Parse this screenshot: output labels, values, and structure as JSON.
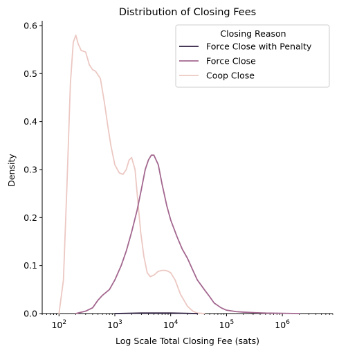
{
  "chart_data": {
    "type": "line",
    "title": "Distribution of Closing Fees",
    "xlabel": "Log Scale Total Closing Fee (sats)",
    "ylabel": "Density",
    "x_scale": "log",
    "xlim": [
      50,
      8000000
    ],
    "ylim": [
      0,
      0.61
    ],
    "x_ticks": [
      {
        "value": 100,
        "base": "10",
        "exp": "2"
      },
      {
        "value": 1000,
        "base": "10",
        "exp": "3"
      },
      {
        "value": 10000,
        "base": "10",
        "exp": "4"
      },
      {
        "value": 100000,
        "base": "10",
        "exp": "5"
      },
      {
        "value": 1000000,
        "base": "10",
        "exp": "6"
      }
    ],
    "y_ticks": [
      {
        "value": 0.0,
        "label": "0.0"
      },
      {
        "value": 0.1,
        "label": "0.1"
      },
      {
        "value": 0.2,
        "label": "0.2"
      },
      {
        "value": 0.3,
        "label": "0.3"
      },
      {
        "value": 0.4,
        "label": "0.4"
      },
      {
        "value": 0.5,
        "label": "0.5"
      },
      {
        "value": 0.6,
        "label": "0.6"
      }
    ],
    "grid": false,
    "legend": {
      "title": "Closing Reason",
      "placement": "top-right"
    },
    "series": [
      {
        "name": "Force Close with Penalty",
        "color": "#2d1e3e",
        "x": [
          1000,
          3000,
          10000,
          30000
        ],
        "y": [
          0.0,
          0.001,
          0.001,
          0.0
        ]
      },
      {
        "name": "Force Close",
        "color": "#a3678f",
        "x": [
          200,
          300,
          400,
          500,
          600,
          800,
          1000,
          1300,
          1600,
          2000,
          2500,
          3000,
          3500,
          4000,
          4500,
          5000,
          6000,
          7000,
          8500,
          10000,
          13000,
          16000,
          20000,
          25000,
          30000,
          40000,
          50000,
          60000,
          80000,
          100000,
          150000,
          200000,
          300000,
          500000,
          1000000,
          2000000
        ],
        "y": [
          0.0,
          0.005,
          0.012,
          0.028,
          0.038,
          0.05,
          0.07,
          0.1,
          0.13,
          0.17,
          0.215,
          0.26,
          0.3,
          0.32,
          0.33,
          0.33,
          0.31,
          0.27,
          0.225,
          0.195,
          0.16,
          0.135,
          0.115,
          0.09,
          0.07,
          0.05,
          0.035,
          0.022,
          0.012,
          0.007,
          0.004,
          0.003,
          0.002,
          0.001,
          0.0005,
          0.0
        ]
      },
      {
        "name": "Coop Close",
        "color": "#ecc8c3",
        "x": [
          100,
          120,
          140,
          160,
          180,
          200,
          220,
          250,
          300,
          350,
          400,
          450,
          550,
          650,
          750,
          850,
          1000,
          1200,
          1400,
          1600,
          1800,
          2000,
          2300,
          2600,
          2900,
          3300,
          3800,
          4300,
          5000,
          6000,
          7000,
          8000,
          9000,
          10000,
          12000,
          15000,
          20000,
          25000,
          30000,
          40000
        ],
        "y": [
          0.0,
          0.07,
          0.28,
          0.48,
          0.565,
          0.58,
          0.562,
          0.548,
          0.545,
          0.518,
          0.508,
          0.505,
          0.49,
          0.44,
          0.39,
          0.35,
          0.31,
          0.293,
          0.29,
          0.3,
          0.32,
          0.325,
          0.3,
          0.23,
          0.17,
          0.12,
          0.085,
          0.077,
          0.08,
          0.088,
          0.09,
          0.09,
          0.088,
          0.085,
          0.07,
          0.04,
          0.015,
          0.005,
          0.001,
          0.0
        ]
      }
    ]
  }
}
